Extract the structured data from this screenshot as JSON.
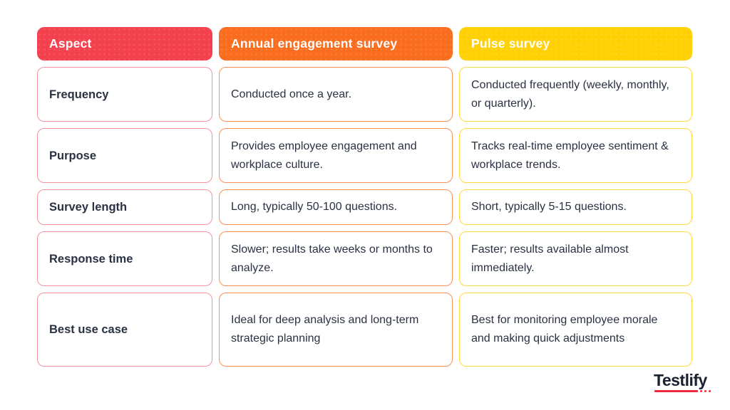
{
  "chart_data": {
    "type": "table",
    "title": "",
    "columns": [
      "Aspect",
      "Annual engagement survey",
      "Pulse survey"
    ],
    "rows": [
      [
        "Frequency",
        "Conducted once a year.",
        "Conducted frequently (weekly, monthly, or quarterly)."
      ],
      [
        "Purpose",
        "Provides employee engagement and workplace culture.",
        "Tracks real-time employee sentiment & workplace trends."
      ],
      [
        "Survey length",
        "Long, typically 50-100 questions.",
        "Short, typically 5-15 questions."
      ],
      [
        "Response time",
        "Slower; results take weeks or months to analyze.",
        "Faster; results available almost immediately."
      ],
      [
        "Best use case",
        "Ideal for deep analysis and long-term strategic planning",
        "Best for monitoring employee morale and making quick adjustments"
      ]
    ],
    "colors": {
      "aspect_header_bg": "#F4414E",
      "annual_header_bg": "#FA6D1F",
      "pulse_header_bg": "#FFD104",
      "aspect_cell_border": "#F5939C",
      "annual_cell_border": "#FB9156",
      "pulse_cell_border": "#FFDA3D",
      "header_text": "#FFFFFF",
      "body_text": "#2A3142"
    },
    "layout": "comparison table, 3 columns x 6 rows (1 header row), rounded cells on white background"
  },
  "logo": {
    "text": "Testlify",
    "text_color": "#19202F",
    "accent_color": "#EE2B3C"
  }
}
